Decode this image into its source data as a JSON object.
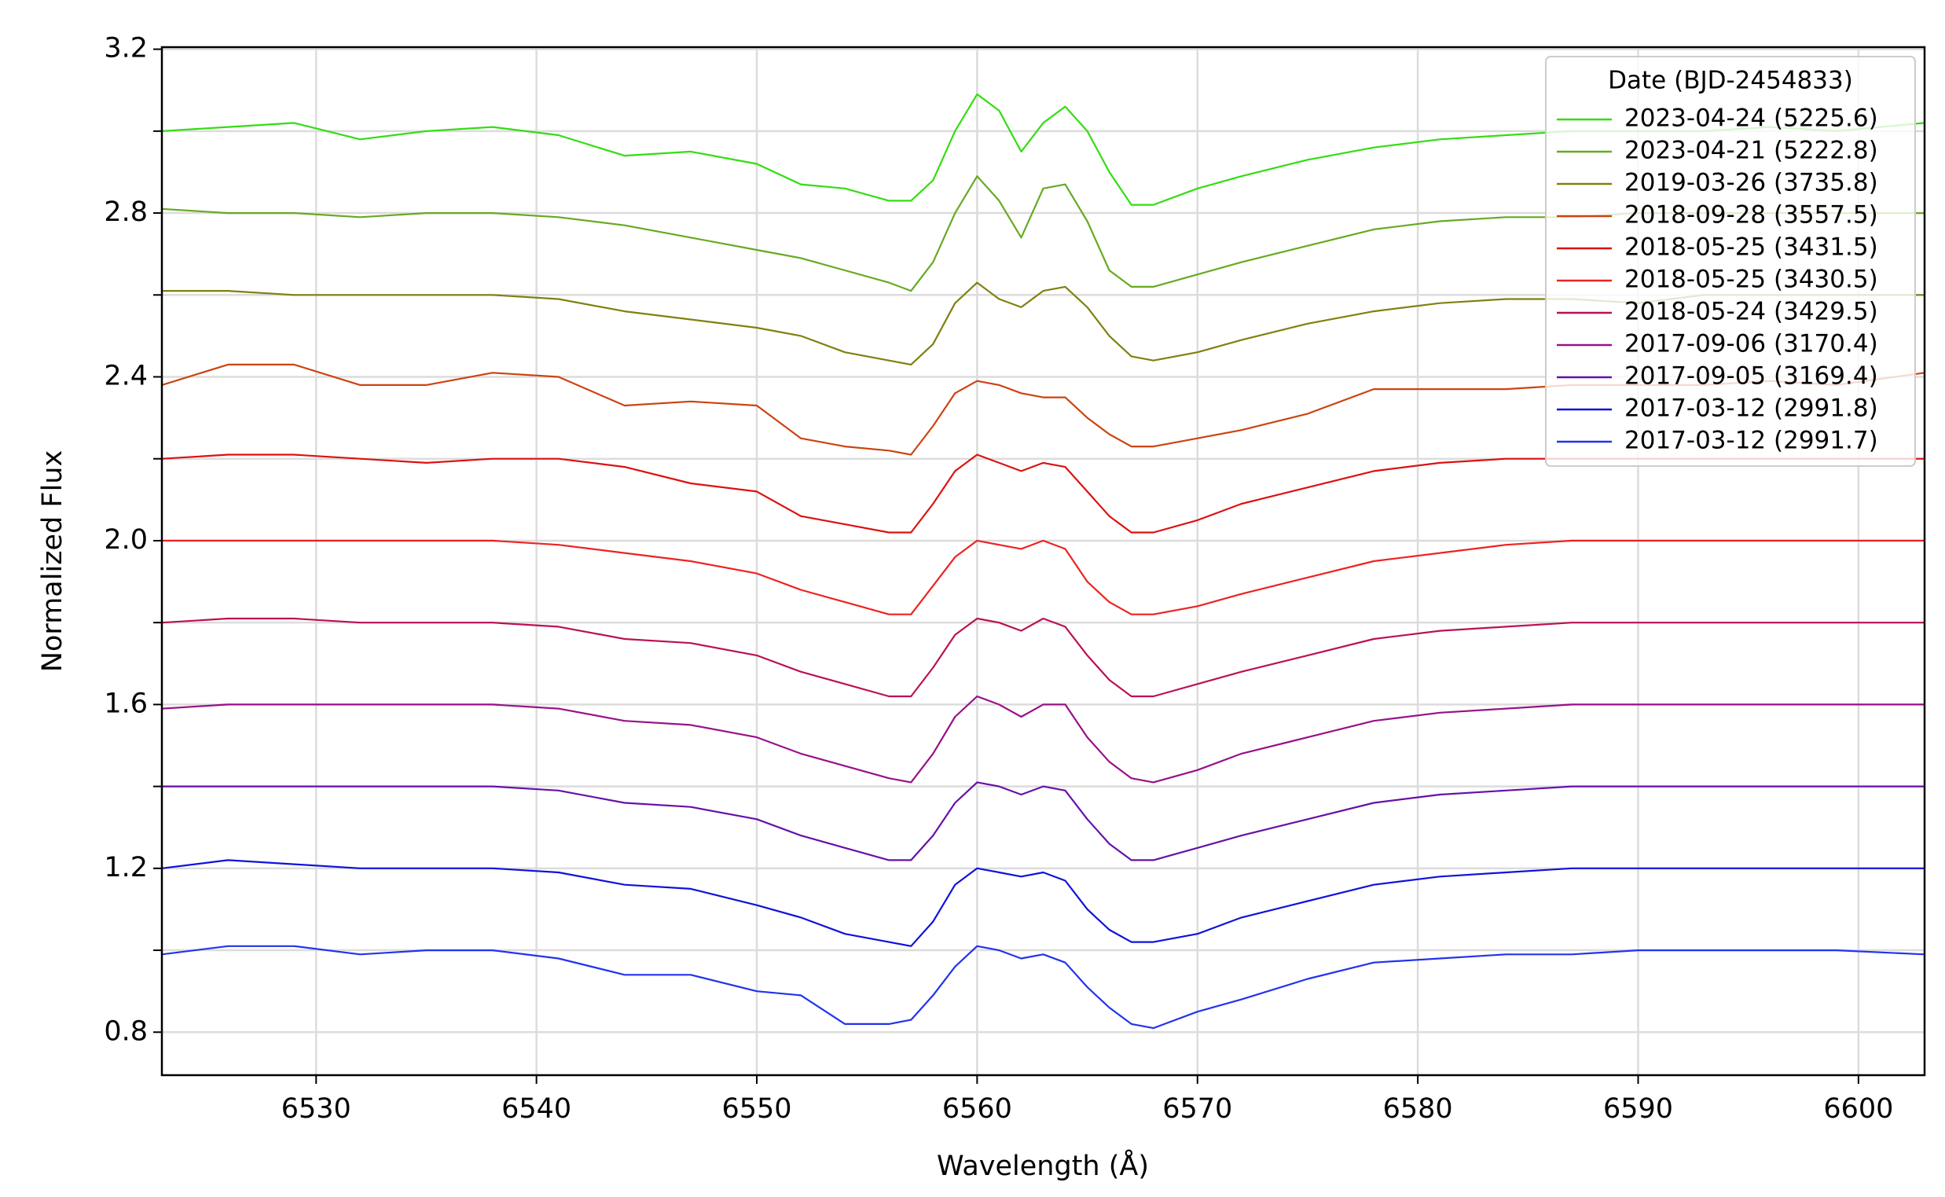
{
  "chart_data": {
    "type": "line",
    "xlabel": "Wavelength (Å)",
    "ylabel": "Normalized Flux",
    "x": [
      6523,
      6526,
      6529,
      6532,
      6535,
      6538,
      6541,
      6544,
      6547,
      6550,
      6552,
      6554,
      6556,
      6557,
      6558,
      6559,
      6560,
      6561,
      6562,
      6563,
      6564,
      6565,
      6566,
      6567,
      6568,
      6570,
      6572,
      6575,
      6578,
      6581,
      6584,
      6587,
      6590,
      6593,
      6596,
      6599,
      6603
    ],
    "xlim": [
      6523,
      6603
    ],
    "xticks": [
      6530,
      6540,
      6550,
      6560,
      6570,
      6580,
      6590,
      6600
    ],
    "ylim": [
      0.695,
      3.205
    ],
    "yticks": [
      0.8,
      1.2,
      1.6,
      {
        "value": 2,
        "label": "2.0"
      },
      2.4,
      2.8,
      3.2
    ],
    "yminorticks": [
      1,
      1.4,
      1.8,
      2.2,
      2.6,
      3
    ],
    "grid": true,
    "legend_title": "Date (BJD-2454833)",
    "legend_loc": "upper right",
    "series": [
      {
        "name": "2023-04-24 (5225.6)",
        "color": "#33dd11",
        "values": [
          3.0,
          3.01,
          3.02,
          2.98,
          3.0,
          3.01,
          2.99,
          2.94,
          2.95,
          2.92,
          2.87,
          2.86,
          2.83,
          2.83,
          2.88,
          3.0,
          3.09,
          3.05,
          2.95,
          3.02,
          3.06,
          3.0,
          2.9,
          2.82,
          2.82,
          2.86,
          2.89,
          2.93,
          2.96,
          2.98,
          2.99,
          3.0,
          3.0,
          3.0,
          3.01,
          3.0,
          3.02
        ]
      },
      {
        "name": "2023-04-21 (5222.8)",
        "color": "#66aa22",
        "values": [
          2.81,
          2.8,
          2.8,
          2.79,
          2.8,
          2.8,
          2.79,
          2.77,
          2.74,
          2.71,
          2.69,
          2.66,
          2.63,
          2.61,
          2.68,
          2.8,
          2.89,
          2.83,
          2.74,
          2.86,
          2.87,
          2.78,
          2.66,
          2.62,
          2.62,
          2.65,
          2.68,
          2.72,
          2.76,
          2.78,
          2.79,
          2.79,
          2.8,
          2.8,
          2.8,
          2.8,
          2.8
        ]
      },
      {
        "name": "2019-03-26 (3735.8)",
        "color": "#808010",
        "values": [
          2.61,
          2.61,
          2.6,
          2.6,
          2.6,
          2.6,
          2.59,
          2.56,
          2.54,
          2.52,
          2.5,
          2.46,
          2.44,
          2.43,
          2.48,
          2.58,
          2.63,
          2.59,
          2.57,
          2.61,
          2.62,
          2.57,
          2.5,
          2.45,
          2.44,
          2.46,
          2.49,
          2.53,
          2.56,
          2.58,
          2.59,
          2.59,
          2.58,
          2.6,
          2.6,
          2.6,
          2.6
        ]
      },
      {
        "name": "2018-09-28 (3557.5)",
        "color": "#cc4411",
        "values": [
          2.38,
          2.43,
          2.43,
          2.38,
          2.38,
          2.41,
          2.4,
          2.33,
          2.34,
          2.33,
          2.25,
          2.23,
          2.22,
          2.21,
          2.28,
          2.36,
          2.39,
          2.38,
          2.36,
          2.35,
          2.35,
          2.3,
          2.26,
          2.23,
          2.23,
          2.25,
          2.27,
          2.31,
          2.37,
          2.37,
          2.37,
          2.38,
          2.38,
          2.38,
          2.39,
          2.38,
          2.41
        ]
      },
      {
        "name": "2018-05-25 (3431.5)",
        "color": "#dd1111",
        "values": [
          2.2,
          2.21,
          2.21,
          2.2,
          2.19,
          2.2,
          2.2,
          2.18,
          2.14,
          2.12,
          2.06,
          2.04,
          2.02,
          2.02,
          2.09,
          2.17,
          2.21,
          2.19,
          2.17,
          2.19,
          2.18,
          2.12,
          2.06,
          2.02,
          2.02,
          2.05,
          2.09,
          2.13,
          2.17,
          2.19,
          2.2,
          2.2,
          2.2,
          2.2,
          2.2,
          2.2,
          2.2
        ]
      },
      {
        "name": "2018-05-25 (3430.5)",
        "color": "#ee2222",
        "values": [
          2.0,
          2.0,
          2.0,
          2.0,
          2.0,
          2.0,
          1.99,
          1.97,
          1.95,
          1.92,
          1.88,
          1.85,
          1.82,
          1.82,
          1.89,
          1.96,
          2.0,
          1.99,
          1.98,
          2.0,
          1.98,
          1.9,
          1.85,
          1.82,
          1.82,
          1.84,
          1.87,
          1.91,
          1.95,
          1.97,
          1.99,
          2.0,
          2.0,
          2.0,
          2.0,
          2.0,
          2.0
        ]
      },
      {
        "name": "2018-05-24 (3429.5)",
        "color": "#bb1155",
        "values": [
          1.8,
          1.81,
          1.81,
          1.8,
          1.8,
          1.8,
          1.79,
          1.76,
          1.75,
          1.72,
          1.68,
          1.65,
          1.62,
          1.62,
          1.69,
          1.77,
          1.81,
          1.8,
          1.78,
          1.81,
          1.79,
          1.72,
          1.66,
          1.62,
          1.62,
          1.65,
          1.68,
          1.72,
          1.76,
          1.78,
          1.79,
          1.8,
          1.8,
          1.8,
          1.8,
          1.8,
          1.8
        ]
      },
      {
        "name": "2017-09-06 (3170.4)",
        "color": "#991188",
        "values": [
          1.59,
          1.6,
          1.6,
          1.6,
          1.6,
          1.6,
          1.59,
          1.56,
          1.55,
          1.52,
          1.48,
          1.45,
          1.42,
          1.41,
          1.48,
          1.57,
          1.62,
          1.6,
          1.57,
          1.6,
          1.6,
          1.52,
          1.46,
          1.42,
          1.41,
          1.44,
          1.48,
          1.52,
          1.56,
          1.58,
          1.59,
          1.6,
          1.6,
          1.6,
          1.6,
          1.6,
          1.6
        ]
      },
      {
        "name": "2017-09-05 (3169.4)",
        "color": "#6611aa",
        "values": [
          1.4,
          1.4,
          1.4,
          1.4,
          1.4,
          1.4,
          1.39,
          1.36,
          1.35,
          1.32,
          1.28,
          1.25,
          1.22,
          1.22,
          1.28,
          1.36,
          1.41,
          1.4,
          1.38,
          1.4,
          1.39,
          1.32,
          1.26,
          1.22,
          1.22,
          1.25,
          1.28,
          1.32,
          1.36,
          1.38,
          1.39,
          1.4,
          1.4,
          1.4,
          1.4,
          1.4,
          1.4
        ]
      },
      {
        "name": "2017-03-12 (2991.8)",
        "color": "#1111dd",
        "values": [
          1.2,
          1.22,
          1.21,
          1.2,
          1.2,
          1.2,
          1.19,
          1.16,
          1.15,
          1.11,
          1.08,
          1.04,
          1.02,
          1.01,
          1.07,
          1.16,
          1.2,
          1.19,
          1.18,
          1.19,
          1.17,
          1.1,
          1.05,
          1.02,
          1.02,
          1.04,
          1.08,
          1.12,
          1.16,
          1.18,
          1.19,
          1.2,
          1.2,
          1.2,
          1.2,
          1.2,
          1.2
        ]
      },
      {
        "name": "2017-03-12 (2991.7)",
        "color": "#2233ee",
        "values": [
          0.99,
          1.01,
          1.01,
          0.99,
          1.0,
          1.0,
          0.98,
          0.94,
          0.94,
          0.9,
          0.89,
          0.82,
          0.82,
          0.83,
          0.89,
          0.96,
          1.01,
          1.0,
          0.98,
          0.99,
          0.97,
          0.91,
          0.86,
          0.82,
          0.81,
          0.85,
          0.88,
          0.93,
          0.97,
          0.98,
          0.99,
          0.99,
          1.0,
          1.0,
          1.0,
          1.0,
          0.99
        ]
      }
    ]
  }
}
